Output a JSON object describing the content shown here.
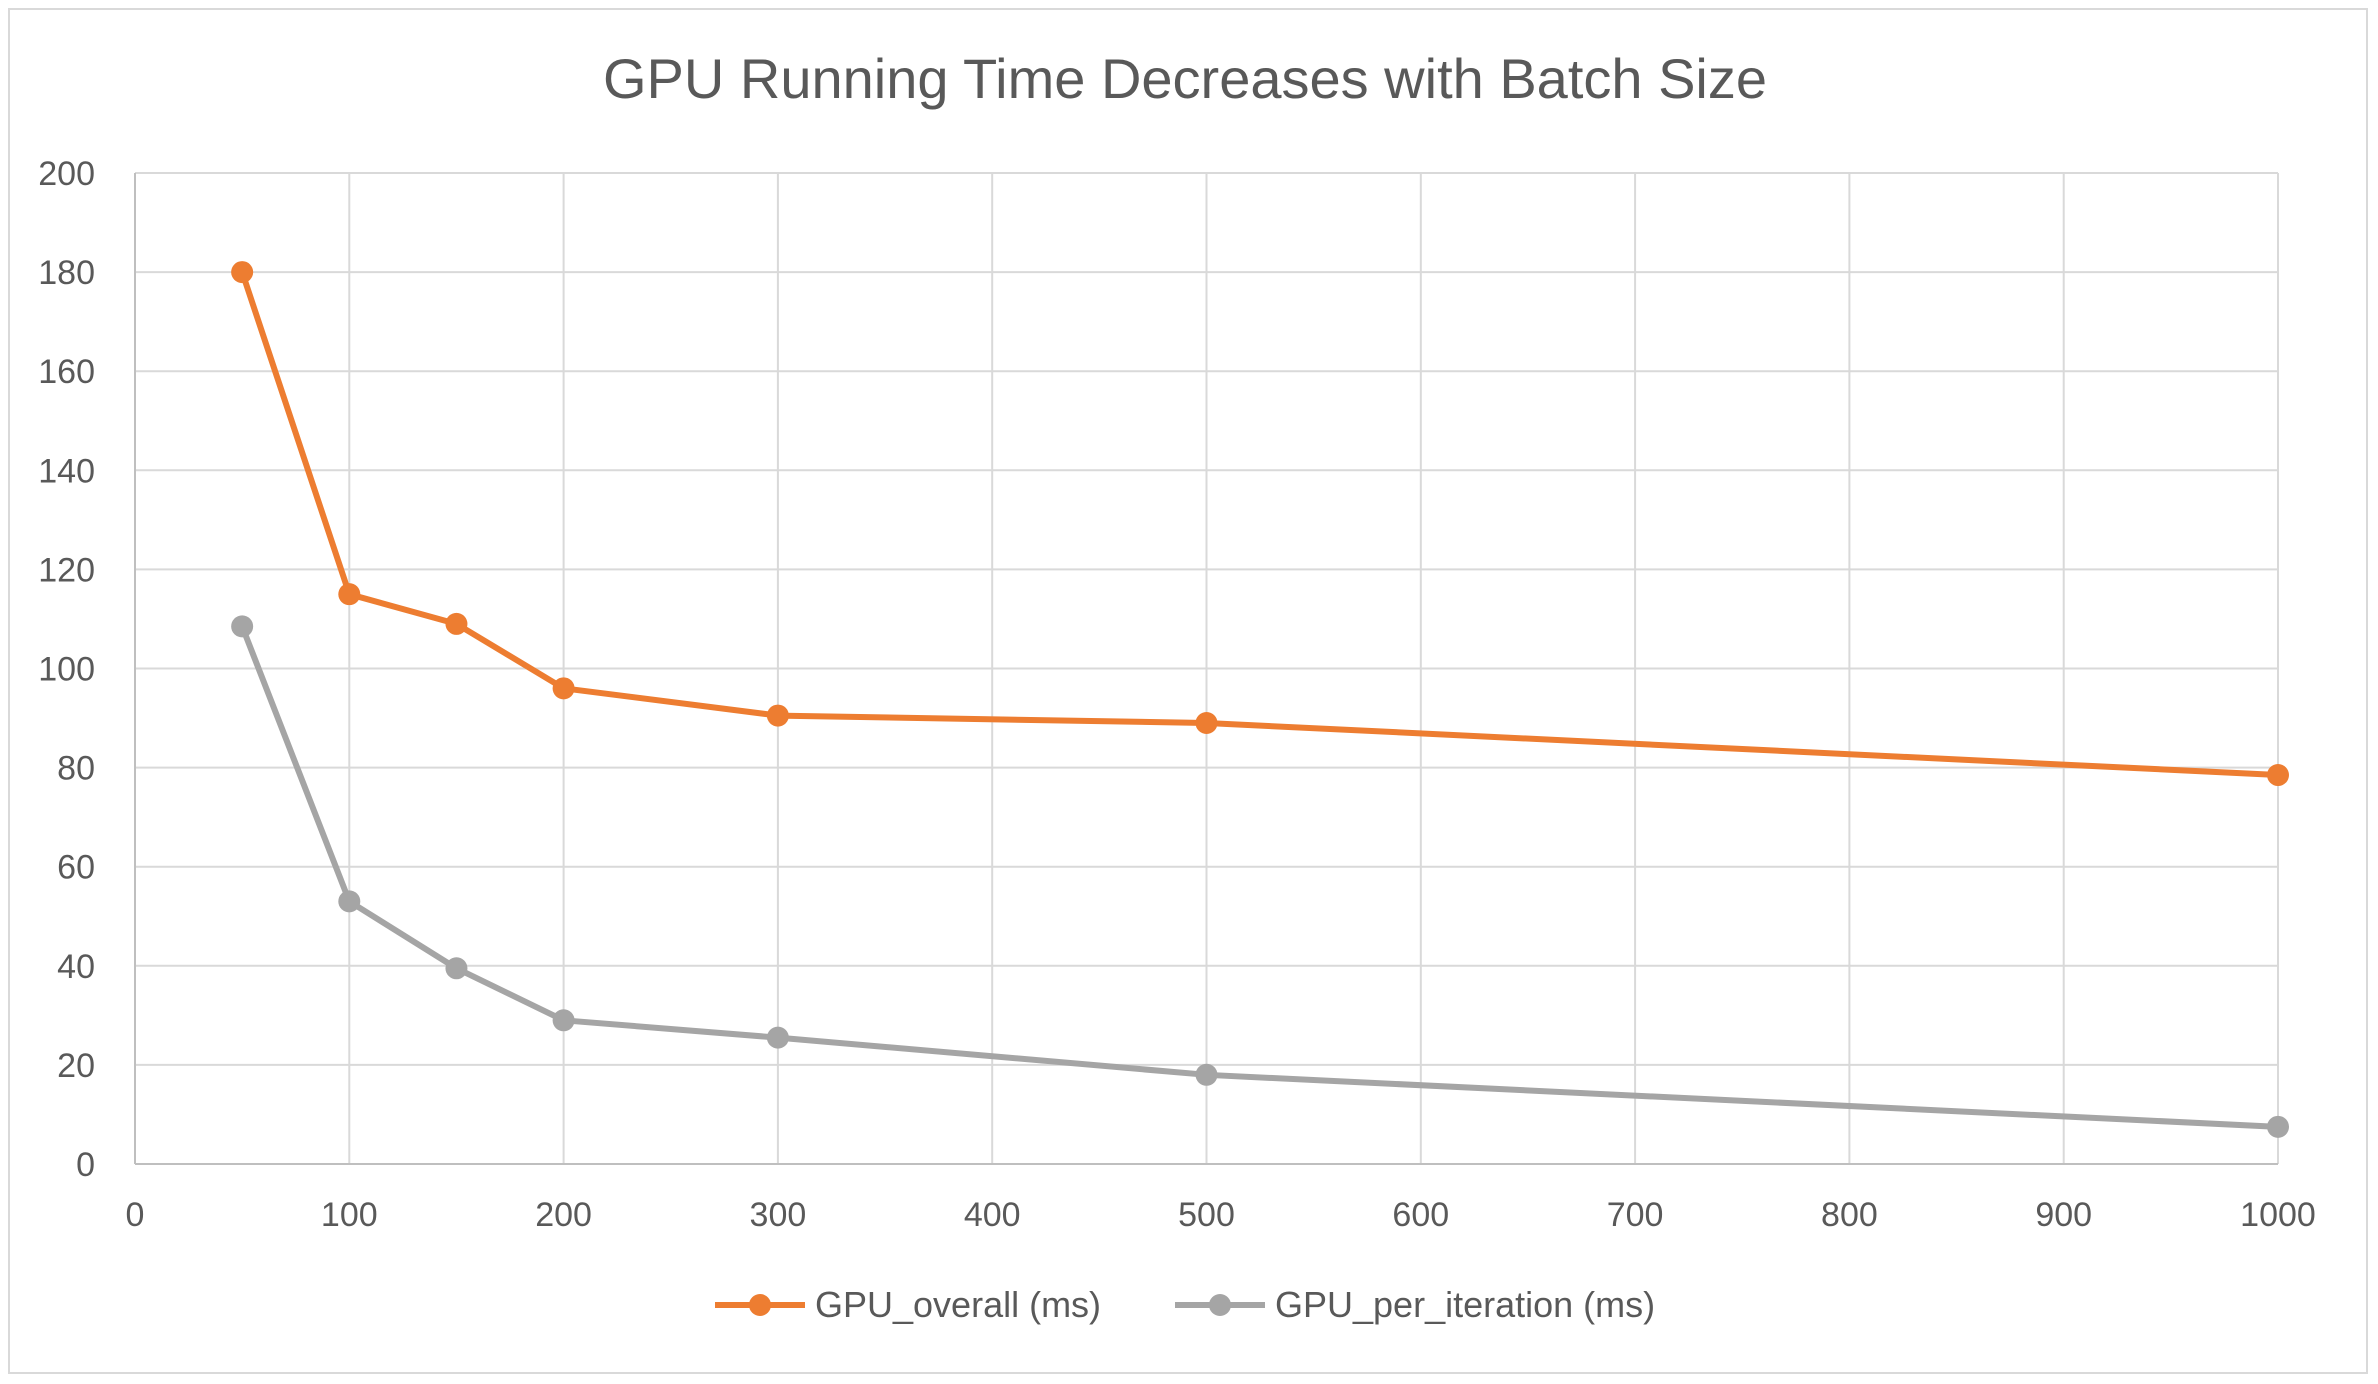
{
  "chart_data": {
    "type": "scatter",
    "title": "GPU Running Time Decreases with Batch Size",
    "xlabel": "",
    "ylabel": "",
    "xlim": [
      0,
      1000
    ],
    "ylim": [
      0,
      200
    ],
    "x_ticks": [
      0,
      100,
      200,
      300,
      400,
      500,
      600,
      700,
      800,
      900,
      1000
    ],
    "y_ticks": [
      0,
      20,
      40,
      60,
      80,
      100,
      120,
      140,
      160,
      180,
      200
    ],
    "grid": true,
    "legend_position": "bottom",
    "series": [
      {
        "name": "GPU_overall (ms)",
        "color": "#ed7d31",
        "x": [
          50,
          100,
          150,
          200,
          300,
          500,
          1000
        ],
        "y": [
          180,
          115,
          109,
          96,
          90.5,
          89,
          78.5
        ]
      },
      {
        "name": "GPU_per_iteration (ms)",
        "color": "#a5a5a5",
        "x": [
          50,
          100,
          150,
          200,
          300,
          500,
          1000
        ],
        "y": [
          108.5,
          53,
          39.5,
          29,
          25.5,
          18,
          7.5
        ]
      }
    ]
  }
}
